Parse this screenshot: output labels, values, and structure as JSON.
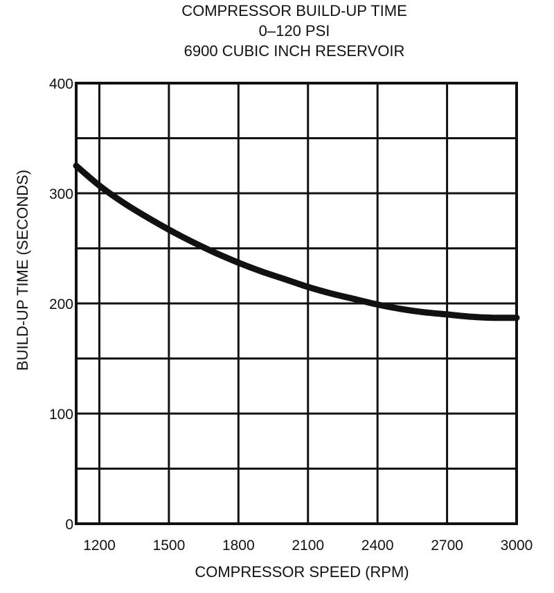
{
  "chart_data": {
    "type": "line",
    "title_lines": [
      "COMPRESSOR BUILD-UP TIME",
      "0–120 PSI",
      "6900 CUBIC INCH RESERVOIR"
    ],
    "xlabel": "COMPRESSOR SPEED (RPM)",
    "ylabel": "BUILD-UP TIME (SECONDS)",
    "xlim": [
      1100,
      3000
    ],
    "ylim": [
      0,
      400
    ],
    "x_ticks": [
      1200,
      1500,
      1800,
      2100,
      2400,
      2700,
      3000
    ],
    "y_ticks": [
      0,
      100,
      200,
      300,
      400
    ],
    "x_gridlines": [
      1200,
      1500,
      1800,
      2100,
      2400,
      2700
    ],
    "y_gridlines": [
      50,
      100,
      150,
      200,
      250,
      300,
      350
    ],
    "grid": true,
    "series": [
      {
        "x": [
          1100,
          1200,
          1300,
          1400,
          1500,
          1600,
          1700,
          1800,
          1900,
          2000,
          2100,
          2200,
          2300,
          2400,
          2500,
          2600,
          2700,
          2800,
          2900,
          3000
        ],
        "y": [
          325,
          307,
          292,
          279,
          267,
          256,
          246,
          237,
          229,
          222,
          215,
          209,
          204,
          199,
          195,
          192,
          190,
          188,
          187,
          187
        ]
      }
    ]
  }
}
